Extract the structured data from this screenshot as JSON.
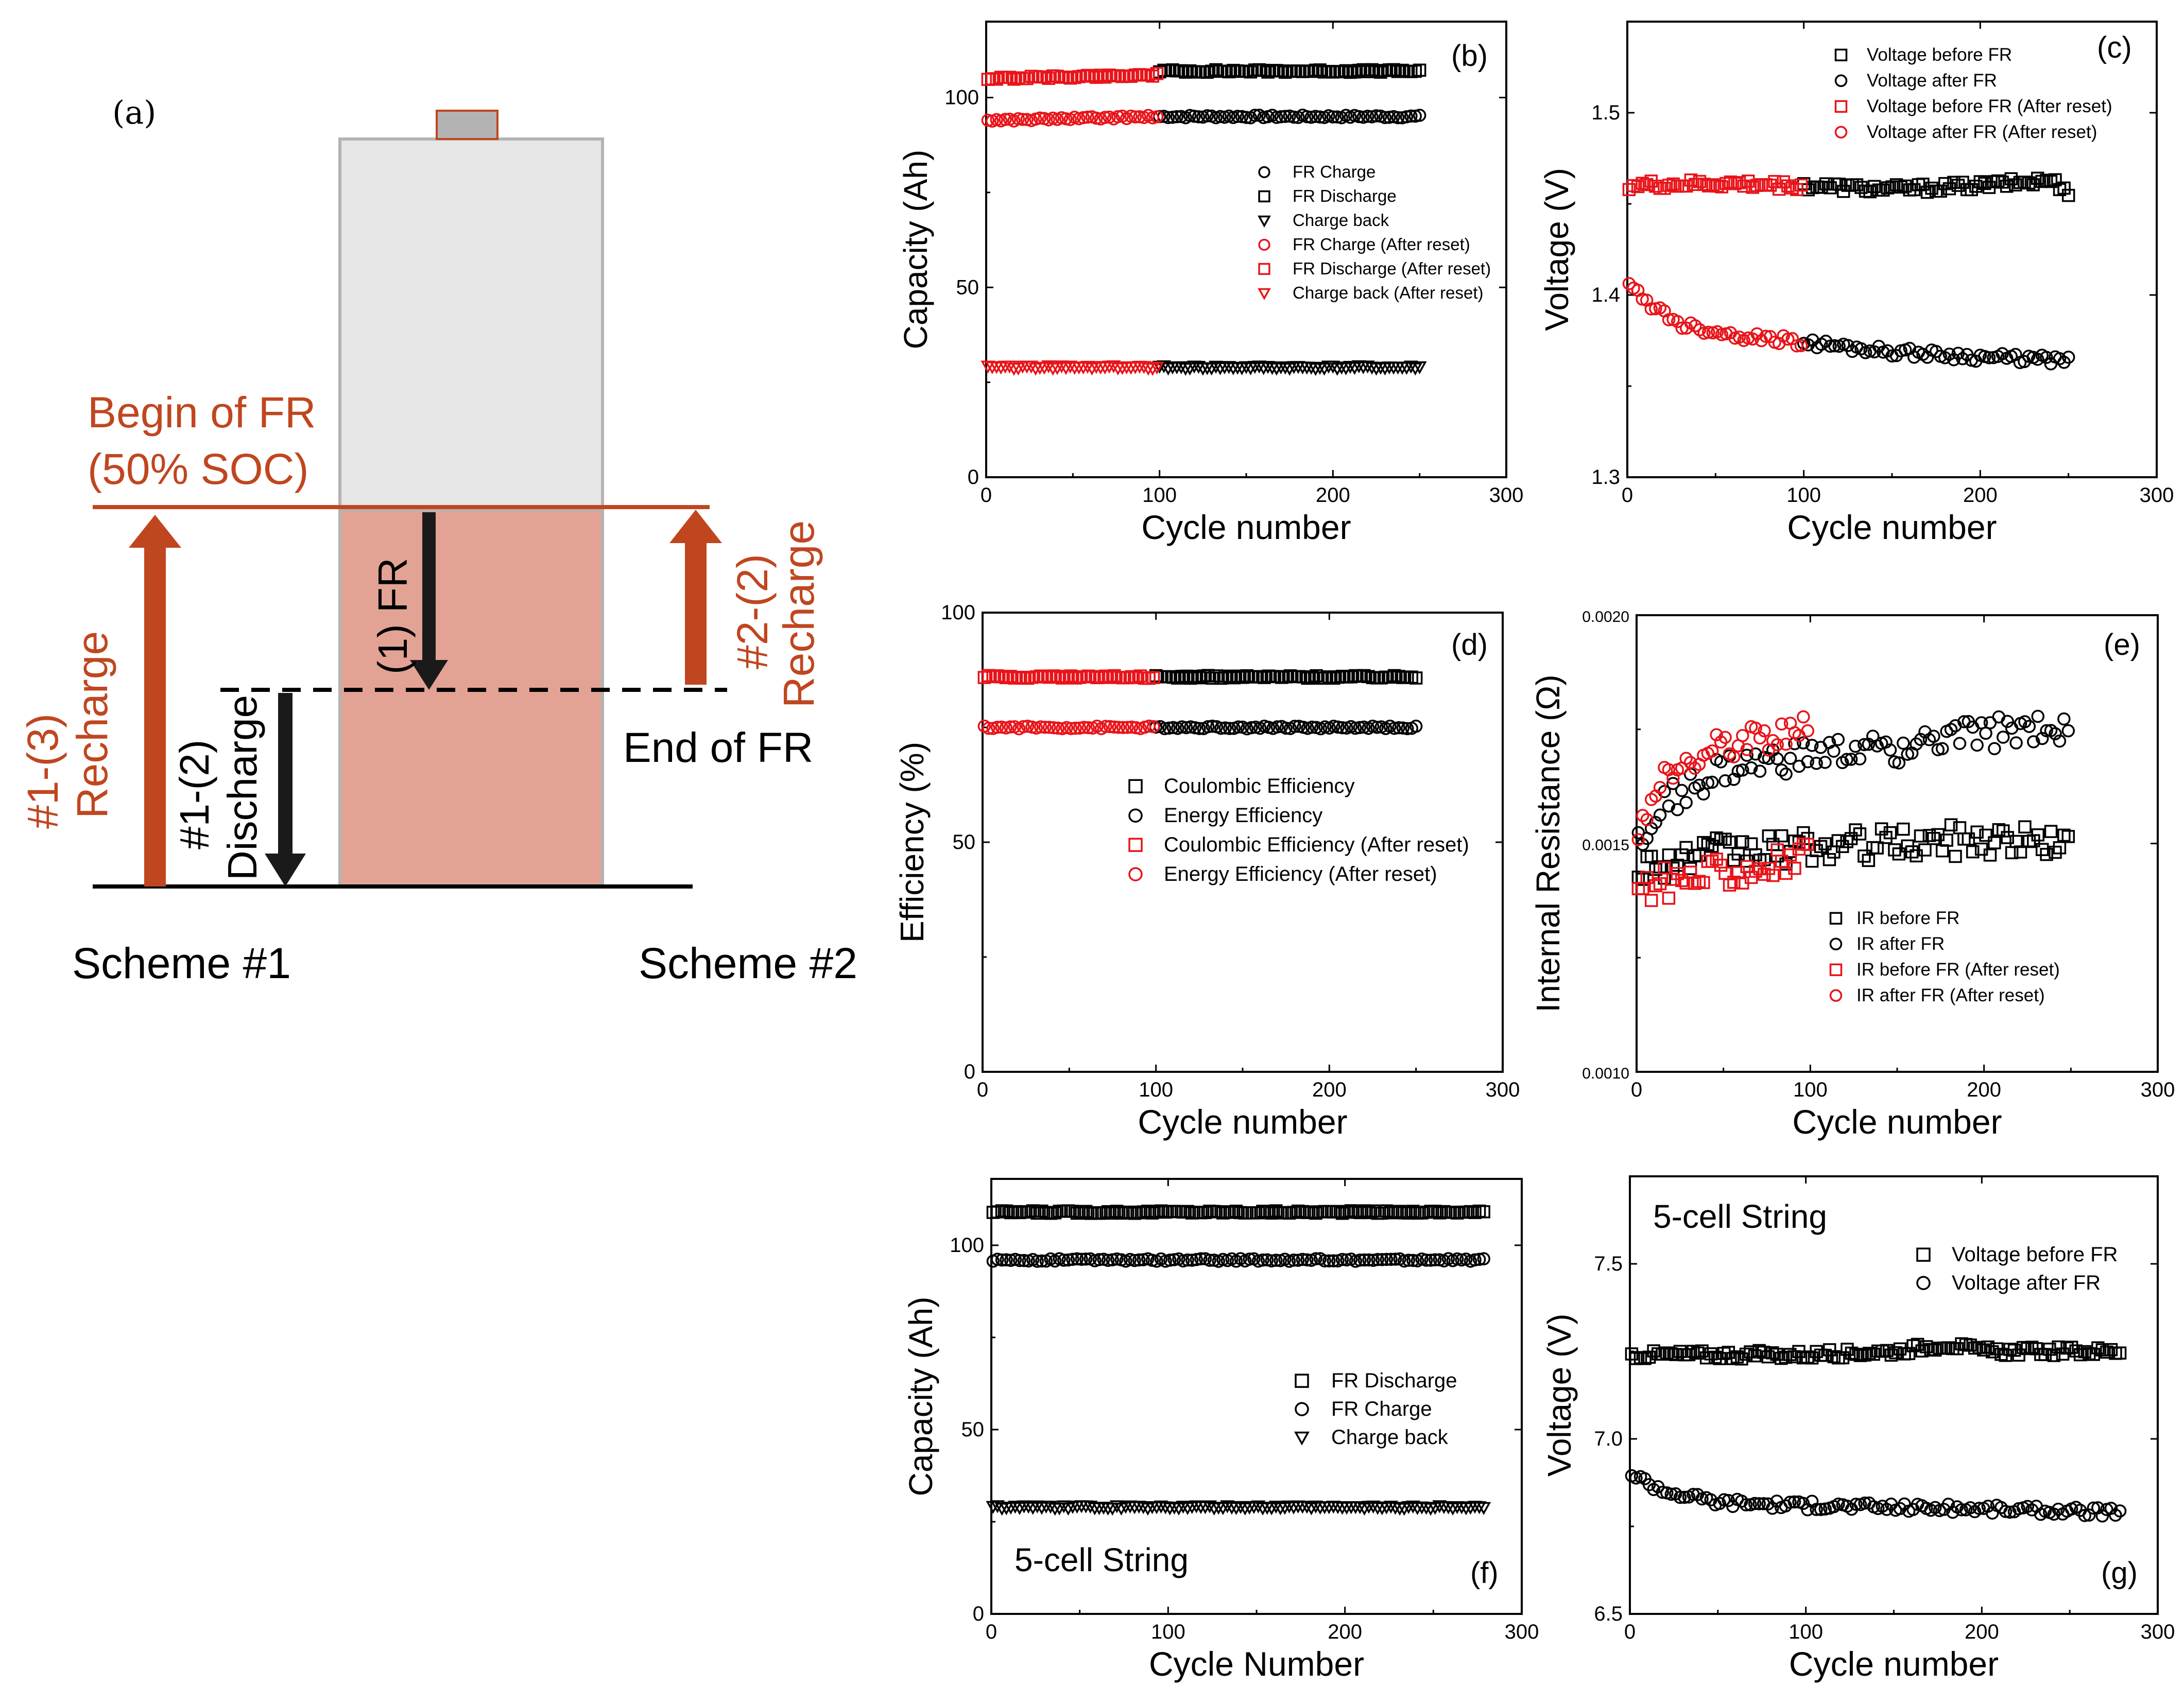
{
  "scheme": {
    "label": "(a)",
    "begin_fr_line1": "Begin of FR",
    "begin_fr_line2": "(50% SOC)",
    "fr_arrow": "(1) FR",
    "discharge_line1": "#1-(2)",
    "discharge_line2": "Discharge",
    "recharge1_line1": "#1-(3)",
    "recharge1_line2": "Recharge",
    "recharge2_line1": "#2-(2)",
    "recharge2_line2": "Recharge",
    "end_fr": "End of FR",
    "scheme1": "Scheme #1",
    "scheme2": "Scheme #2",
    "colors": {
      "accent": "#c0461f",
      "battery_fill": "#e6e6e6",
      "battery_soc": "#e3a394",
      "terminal": "#b3b3b3"
    }
  },
  "chart_data": [
    {
      "id": "b",
      "panel_label": "(b)",
      "type": "scatter",
      "xlabel": "Cycle number",
      "ylabel": "Capacity (Ah)",
      "xlim": [
        0,
        300
      ],
      "ylim": [
        0,
        120
      ],
      "xticks": [
        "0",
        "100",
        "200",
        "300"
      ],
      "yticks": [
        "0",
        "50",
        "100"
      ],
      "xtick_values": [
        0,
        100,
        200,
        300
      ],
      "ytick_values": [
        0,
        50,
        100
      ],
      "series": [
        {
          "name": "FR Charge",
          "marker": "circle",
          "color": "#000000",
          "x": [
            100,
            250
          ],
          "y": [
            95,
            95
          ]
        },
        {
          "name": "FR Discharge",
          "marker": "square",
          "color": "#000000",
          "x": [
            100,
            250
          ],
          "y": [
            107,
            107
          ]
        },
        {
          "name": "Charge back",
          "marker": "triangle",
          "color": "#000000",
          "x": [
            100,
            250
          ],
          "y": [
            29,
            29
          ]
        },
        {
          "name": "FR Charge (After reset)",
          "marker": "circle",
          "color": "#e8141a",
          "x": [
            1,
            100
          ],
          "y": [
            94,
            95
          ]
        },
        {
          "name": "FR Discharge (After reset)",
          "marker": "square",
          "color": "#e8141a",
          "x": [
            1,
            100
          ],
          "y": [
            105,
            106
          ]
        },
        {
          "name": "Charge back (After reset)",
          "marker": "triangle",
          "color": "#e8141a",
          "x": [
            1,
            100
          ],
          "y": [
            29,
            29
          ]
        }
      ]
    },
    {
      "id": "c",
      "panel_label": "(c)",
      "type": "scatter",
      "xlabel": "Cycle number",
      "ylabel": "Voltage (V)",
      "xlim": [
        0,
        300
      ],
      "ylim": [
        1.3,
        1.55
      ],
      "xticks": [
        "0",
        "100",
        "200",
        "300"
      ],
      "yticks": [
        "1.3",
        "1.4",
        "1.5"
      ],
      "xtick_values": [
        0,
        100,
        200,
        300
      ],
      "ytick_values": [
        1.3,
        1.4,
        1.5
      ],
      "series": [
        {
          "name": "Voltage before FR",
          "marker": "square",
          "color": "#000000",
          "x": [
            100,
            150,
            200,
            240,
            250
          ],
          "y": [
            1.46,
            1.458,
            1.46,
            1.463,
            1.457
          ]
        },
        {
          "name": "Voltage after FR",
          "marker": "circle",
          "color": "#000000",
          "x": [
            100,
            150,
            200,
            250
          ],
          "y": [
            1.374,
            1.369,
            1.366,
            1.364
          ]
        },
        {
          "name": "Voltage before FR (After reset)",
          "marker": "square",
          "color": "#e8141a",
          "x": [
            1,
            50,
            100
          ],
          "y": [
            1.46,
            1.461,
            1.46
          ]
        },
        {
          "name": "Voltage after FR (After reset)",
          "marker": "circle",
          "color": "#e8141a",
          "x": [
            1,
            10,
            30,
            60,
            100
          ],
          "y": [
            1.405,
            1.397,
            1.384,
            1.378,
            1.374
          ]
        }
      ]
    },
    {
      "id": "d",
      "panel_label": "(d)",
      "type": "scatter",
      "xlabel": "Cycle number",
      "ylabel": "Efficiency (%)",
      "xlim": [
        0,
        300
      ],
      "ylim": [
        0,
        100
      ],
      "xticks": [
        "0",
        "100",
        "200",
        "300"
      ],
      "yticks": [
        "0",
        "50",
        "100"
      ],
      "xtick_values": [
        0,
        100,
        200,
        300
      ],
      "ytick_values": [
        0,
        50,
        100
      ],
      "series": [
        {
          "name": "Coulombic Efficiency",
          "marker": "square",
          "color": "#000000",
          "x": [
            100,
            250
          ],
          "y": [
            86,
            86
          ]
        },
        {
          "name": "Energy Efficiency",
          "marker": "circle",
          "color": "#000000",
          "x": [
            100,
            250
          ],
          "y": [
            75,
            75
          ]
        },
        {
          "name": "Coulombic Efficiency (After reset)",
          "marker": "square",
          "color": "#e8141a",
          "x": [
            1,
            100
          ],
          "y": [
            86,
            86
          ]
        },
        {
          "name": "Energy Efficiency (After reset)",
          "marker": "circle",
          "color": "#e8141a",
          "x": [
            1,
            100
          ],
          "y": [
            75,
            75
          ]
        }
      ]
    },
    {
      "id": "e",
      "panel_label": "(e)",
      "type": "scatter",
      "xlabel": "Cycle number",
      "ylabel": "Internal Resistance (Ω)",
      "xlim": [
        0,
        300
      ],
      "ylim": [
        0.001,
        0.002
      ],
      "xticks": [
        "0",
        "100",
        "200",
        "300"
      ],
      "yticks": [
        "0.0010",
        "0.0015",
        "0.0020"
      ],
      "xtick_values": [
        0,
        100,
        200,
        300
      ],
      "ytick_values": [
        0.001,
        0.0015,
        0.002
      ],
      "series": [
        {
          "name": "IR before FR",
          "marker": "square",
          "color": "#000000",
          "x": [
            1,
            50,
            100,
            150,
            200,
            250
          ],
          "y": [
            0.00145,
            0.00148,
            0.00149,
            0.0015,
            0.00151,
            0.0015
          ]
        },
        {
          "name": "IR after FR",
          "marker": "circle",
          "color": "#000000",
          "x": [
            1,
            20,
            50,
            100,
            150,
            200,
            250
          ],
          "y": [
            0.0015,
            0.0016,
            0.00166,
            0.00169,
            0.00171,
            0.00174,
            0.00176
          ]
        },
        {
          "name": "IR before FR (After reset)",
          "marker": "square",
          "color": "#e8141a",
          "x": [
            1,
            50,
            100
          ],
          "y": [
            0.0014,
            0.00144,
            0.00147
          ]
        },
        {
          "name": "IR after FR (After reset)",
          "marker": "circle",
          "color": "#e8141a",
          "x": [
            1,
            20,
            50,
            100
          ],
          "y": [
            0.00153,
            0.00166,
            0.00172,
            0.00175
          ]
        }
      ]
    },
    {
      "id": "f",
      "panel_label": "(f)",
      "type": "scatter",
      "annotation": "5-cell String",
      "xlabel": "Cycle Number",
      "ylabel": "Capacity (Ah)",
      "xlim": [
        0,
        300
      ],
      "ylim": [
        0,
        118
      ],
      "xticks": [
        "0",
        "100",
        "200",
        "300"
      ],
      "yticks": [
        "0",
        "50",
        "100"
      ],
      "xtick_values": [
        0,
        100,
        200,
        300
      ],
      "ytick_values": [
        0,
        50,
        100
      ],
      "series": [
        {
          "name": "FR Discharge",
          "marker": "square",
          "color": "#000000",
          "x": [
            1,
            280
          ],
          "y": [
            109,
            109
          ]
        },
        {
          "name": "FR Charge",
          "marker": "circle",
          "color": "#000000",
          "x": [
            1,
            280
          ],
          "y": [
            96,
            96
          ]
        },
        {
          "name": "Charge back",
          "marker": "triangle",
          "color": "#000000",
          "x": [
            1,
            280
          ],
          "y": [
            29,
            29
          ]
        }
      ]
    },
    {
      "id": "g",
      "panel_label": "(g)",
      "type": "scatter",
      "annotation": "5-cell String",
      "xlabel": "Cycle number",
      "ylabel": "Voltage (V)",
      "xlim": [
        0,
        300
      ],
      "ylim": [
        6.5,
        7.75
      ],
      "xticks": [
        "0",
        "100",
        "200",
        "300"
      ],
      "yticks": [
        "6.5",
        "7.0",
        "7.5"
      ],
      "xtick_values": [
        0,
        100,
        200,
        300
      ],
      "ytick_values": [
        6.5,
        7.0,
        7.5
      ],
      "series": [
        {
          "name": "Voltage before FR",
          "marker": "square",
          "color": "#000000",
          "x": [
            1,
            100,
            150,
            180,
            200,
            280
          ],
          "y": [
            7.24,
            7.24,
            7.25,
            7.27,
            7.25,
            7.25
          ]
        },
        {
          "name": "Voltage after FR",
          "marker": "circle",
          "color": "#000000",
          "x": [
            1,
            20,
            50,
            100,
            200,
            280
          ],
          "y": [
            6.9,
            6.85,
            6.82,
            6.81,
            6.8,
            6.79
          ]
        }
      ]
    }
  ]
}
